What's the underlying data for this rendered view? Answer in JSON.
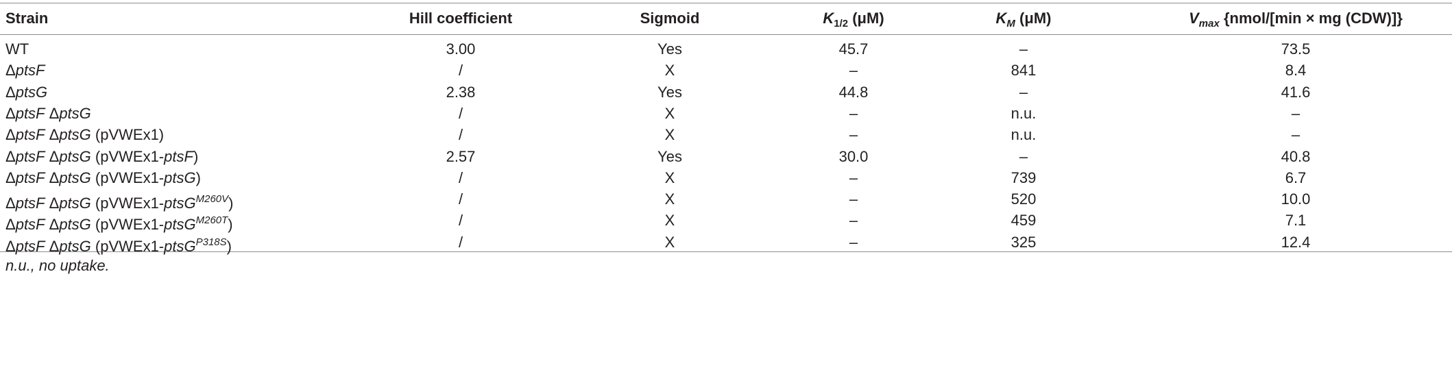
{
  "table": {
    "columns": [
      [
        {
          "text": "Strain"
        }
      ],
      [
        {
          "text": "Hill coefficient"
        }
      ],
      [
        {
          "text": "Sigmoid"
        }
      ],
      [
        {
          "text": "K",
          "style": "italic"
        },
        {
          "text": "1/2",
          "style": "sub"
        },
        {
          "text": " (μM)"
        }
      ],
      [
        {
          "text": "K",
          "style": "italic"
        },
        {
          "text": "M",
          "style": "italic sub"
        },
        {
          "text": " (μM)"
        }
      ],
      [
        {
          "text": "V",
          "style": "italic"
        },
        {
          "text": "max",
          "style": "italic sub"
        },
        {
          "text": " {nmol/[min × mg (CDW)]}"
        }
      ]
    ],
    "rows": [
      [
        [
          {
            "text": "WT"
          }
        ],
        "3.00",
        "Yes",
        "45.7",
        "–",
        "73.5"
      ],
      [
        [
          {
            "text": "Δ"
          },
          {
            "text": "ptsF",
            "style": "italic"
          }
        ],
        "/",
        "X",
        "–",
        "841",
        "8.4"
      ],
      [
        [
          {
            "text": "Δ"
          },
          {
            "text": "ptsG",
            "style": "italic"
          }
        ],
        "2.38",
        "Yes",
        "44.8",
        "–",
        "41.6"
      ],
      [
        [
          {
            "text": "Δ"
          },
          {
            "text": "ptsF",
            "style": "italic"
          },
          {
            "text": " Δ"
          },
          {
            "text": "ptsG",
            "style": "italic"
          }
        ],
        "/",
        "X",
        "–",
        "n.u.",
        "–"
      ],
      [
        [
          {
            "text": "Δ"
          },
          {
            "text": "ptsF",
            "style": "italic"
          },
          {
            "text": " Δ"
          },
          {
            "text": "ptsG",
            "style": "italic"
          },
          {
            "text": " (pVWEx1)"
          }
        ],
        "/",
        "X",
        "–",
        "n.u.",
        "–"
      ],
      [
        [
          {
            "text": "Δ"
          },
          {
            "text": "ptsF",
            "style": "italic"
          },
          {
            "text": " Δ"
          },
          {
            "text": "ptsG",
            "style": "italic"
          },
          {
            "text": " (pVWEx1-"
          },
          {
            "text": "ptsF",
            "style": "italic"
          },
          {
            "text": ")"
          }
        ],
        "2.57",
        "Yes",
        "30.0",
        "–",
        "40.8"
      ],
      [
        [
          {
            "text": "Δ"
          },
          {
            "text": "ptsF",
            "style": "italic"
          },
          {
            "text": " Δ"
          },
          {
            "text": "ptsG",
            "style": "italic"
          },
          {
            "text": " (pVWEx1-"
          },
          {
            "text": "ptsG",
            "style": "italic"
          },
          {
            "text": ")"
          }
        ],
        "/",
        "X",
        "–",
        "739",
        "6.7"
      ],
      [
        [
          {
            "text": "Δ"
          },
          {
            "text": "ptsF",
            "style": "italic"
          },
          {
            "text": " Δ"
          },
          {
            "text": "ptsG",
            "style": "italic"
          },
          {
            "text": " (pVWEx1-"
          },
          {
            "text": "ptsG",
            "style": "italic"
          },
          {
            "text": "M260V",
            "style": "sup"
          },
          {
            "text": ")"
          }
        ],
        "/",
        "X",
        "–",
        "520",
        "10.0"
      ],
      [
        [
          {
            "text": "Δ"
          },
          {
            "text": "ptsF",
            "style": "italic"
          },
          {
            "text": " Δ"
          },
          {
            "text": "ptsG",
            "style": "italic"
          },
          {
            "text": " (pVWEx1-"
          },
          {
            "text": "ptsG",
            "style": "italic"
          },
          {
            "text": "M260T",
            "style": "sup"
          },
          {
            "text": ")"
          }
        ],
        "/",
        "X",
        "–",
        "459",
        "7.1"
      ],
      [
        [
          {
            "text": "Δ"
          },
          {
            "text": "ptsF",
            "style": "italic"
          },
          {
            "text": " Δ"
          },
          {
            "text": "ptsG",
            "style": "italic"
          },
          {
            "text": " (pVWEx1-"
          },
          {
            "text": "ptsG",
            "style": "italic"
          },
          {
            "text": "P318S",
            "style": "sup"
          },
          {
            "text": ")"
          }
        ],
        "/",
        "X",
        "–",
        "325",
        "12.4"
      ]
    ]
  },
  "footnote": "n.u., no uptake."
}
